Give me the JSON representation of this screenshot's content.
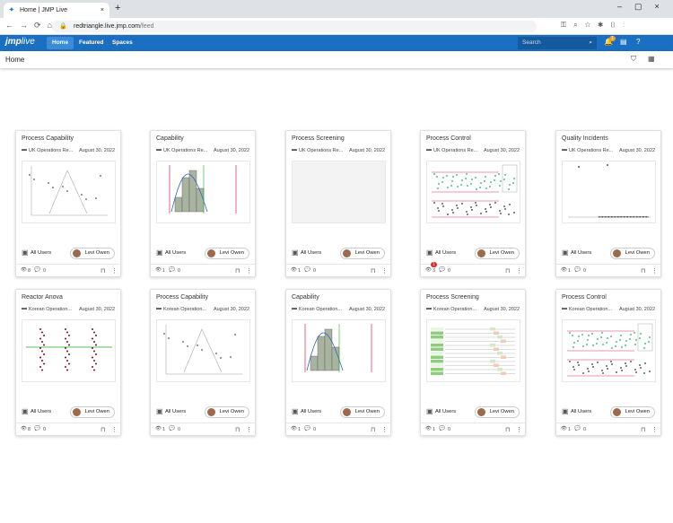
{
  "browser": {
    "tab_title": "Home | JMP Live",
    "url_host": "redtriangle.live.jmp.com",
    "url_path": "/feed"
  },
  "app": {
    "logo": "jmp",
    "logo_suffix": "live",
    "nav": [
      "Home",
      "Featured",
      "Spaces"
    ],
    "search_placeholder": "Search",
    "notification_count": "1"
  },
  "page": {
    "title": "Home"
  },
  "cards": [
    {
      "title": "Process Capability",
      "folder": "UK Operations Re...",
      "date": "August 30, 2022",
      "visibility": "All Users",
      "author": "Levi Owen",
      "views": "8",
      "comments": "0"
    },
    {
      "title": "Capability",
      "folder": "UK Operations Re...",
      "date": "August 30, 2022",
      "visibility": "All Users",
      "author": "Levi Owen",
      "views": "1",
      "comments": "0"
    },
    {
      "title": "Process Screening",
      "folder": "UK Operations Re...",
      "date": "August 30, 2022",
      "visibility": "All Users",
      "author": "Levi Owen",
      "views": "1",
      "comments": "0"
    },
    {
      "title": "Process Control",
      "folder": "UK Operations Re...",
      "date": "August 30, 2022",
      "visibility": "All Users",
      "author": "Levi Owen",
      "views": "3",
      "comments": "0",
      "badge": "1"
    },
    {
      "title": "Quality Incidents",
      "folder": "UK Operations Re...",
      "date": "August 30, 2022",
      "visibility": "All Users",
      "author": "Levi Owen",
      "views": "1",
      "comments": "0"
    },
    {
      "title": "Reactor Anova",
      "folder": "Korean Operation...",
      "date": "August 30, 2022",
      "visibility": "All Users",
      "author": "Levi Owen",
      "views": "8",
      "comments": "0"
    },
    {
      "title": "Process Capability",
      "folder": "Korean Operation...",
      "date": "August 30, 2022",
      "visibility": "All Users",
      "author": "Levi Owen",
      "views": "1",
      "comments": "0"
    },
    {
      "title": "Capability",
      "folder": "Korean Operation...",
      "date": "August 30, 2022",
      "visibility": "All Users",
      "author": "Levi Owen",
      "views": "1",
      "comments": "0"
    },
    {
      "title": "Process Screening",
      "folder": "Korean Operation...",
      "date": "August 30, 2022",
      "visibility": "All Users",
      "author": "Levi Owen",
      "views": "1",
      "comments": "0"
    },
    {
      "title": "Process Control",
      "folder": "Korean Operation...",
      "date": "August 30, 2022",
      "visibility": "All Users",
      "author": "Levi Owen",
      "views": "1",
      "comments": "0"
    }
  ]
}
